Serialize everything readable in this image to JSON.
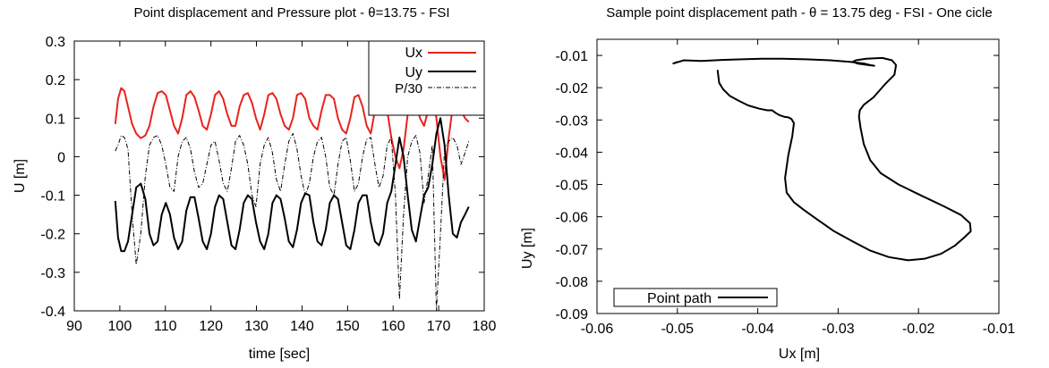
{
  "chart_data": [
    {
      "type": "line",
      "title": "Point displacement and Pressure plot - θ=13.75 - FSI",
      "xlabel": "time [sec]",
      "ylabel": "U [m]",
      "xlim": [
        90,
        180
      ],
      "ylim": [
        -0.4,
        0.3
      ],
      "xticks": [
        90,
        100,
        110,
        120,
        130,
        140,
        150,
        160,
        170,
        180
      ],
      "yticks": [
        -0.4,
        -0.3,
        -0.2,
        -0.1,
        0,
        0.1,
        0.2,
        0.3
      ],
      "xtick_labels": [
        "90",
        "100",
        "110",
        "120",
        "130",
        "140",
        "150",
        "160",
        "170",
        "180"
      ],
      "ytick_labels": [
        "-0.4",
        "-0.3",
        "-0.2",
        "-0.1",
        "0",
        "0.1",
        "0.2",
        "0.3"
      ],
      "grid": false,
      "legend_position": "top-right",
      "series": [
        {
          "name": "Ux",
          "color": "#e8231e",
          "style": "solid",
          "x": [
            99,
            99.6,
            100.3,
            101,
            101.8,
            102.7,
            103.6,
            104.6,
            105.6,
            106.5,
            107.4,
            108.3,
            109.2,
            110.1,
            111,
            111.9,
            112.8,
            113.7,
            114.6,
            115.5,
            116.4,
            117.3,
            118.2,
            119.1,
            120,
            120.9,
            121.8,
            122.7,
            123.6,
            124.5,
            125.4,
            126.3,
            127.2,
            128.1,
            129,
            129.9,
            130.8,
            131.7,
            132.6,
            133.5,
            134.4,
            135.3,
            136.2,
            137.1,
            138,
            138.9,
            139.8,
            140.7,
            141.6,
            142.5,
            143.4,
            144.3,
            145.2,
            146.1,
            147,
            147.9,
            148.8,
            149.7,
            150.6,
            151.5,
            152.4,
            153.3,
            154.2,
            155.1,
            156,
            156.9,
            157.8,
            158.7,
            159.6,
            160.5,
            161.4,
            162.3,
            163.2,
            164.1,
            165,
            165.9,
            166.8,
            167.7,
            168.6,
            169.5,
            170.4,
            171.3,
            172.2,
            173.1,
            174,
            174.9,
            175.8,
            176.6
          ],
          "y": [
            0.085,
            0.15,
            0.178,
            0.17,
            0.13,
            0.085,
            0.06,
            0.048,
            0.055,
            0.08,
            0.13,
            0.165,
            0.17,
            0.16,
            0.12,
            0.08,
            0.06,
            0.1,
            0.16,
            0.17,
            0.155,
            0.12,
            0.08,
            0.07,
            0.11,
            0.16,
            0.17,
            0.15,
            0.11,
            0.08,
            0.08,
            0.13,
            0.16,
            0.165,
            0.14,
            0.1,
            0.07,
            0.11,
            0.16,
            0.165,
            0.15,
            0.11,
            0.08,
            0.07,
            0.1,
            0.16,
            0.165,
            0.15,
            0.1,
            0.08,
            0.07,
            0.12,
            0.16,
            0.16,
            0.15,
            0.1,
            0.07,
            0.06,
            0.1,
            0.155,
            0.16,
            0.13,
            0.08,
            0.06,
            0.12,
            0.165,
            0.165,
            0.12,
            0.05,
            0.0,
            -0.03,
            0.02,
            0.11,
            0.16,
            0.145,
            0.1,
            0.08,
            0.12,
            0.16,
            0.1,
            0.0,
            -0.06,
            0.05,
            0.13,
            0.15,
            0.12,
            0.1,
            0.09
          ]
        },
        {
          "name": "Uy",
          "color": "#000000",
          "style": "solid",
          "x": [
            99,
            99.6,
            100.3,
            101,
            101.8,
            102.7,
            103.6,
            104.6,
            105.6,
            106.5,
            107.4,
            108.3,
            109.2,
            110.1,
            111,
            111.9,
            112.8,
            113.7,
            114.6,
            115.5,
            116.4,
            117.3,
            118.2,
            119.1,
            120,
            120.9,
            121.8,
            122.7,
            123.6,
            124.5,
            125.4,
            126.3,
            127.2,
            128.1,
            129,
            129.9,
            130.8,
            131.7,
            132.6,
            133.5,
            134.4,
            135.3,
            136.2,
            137.1,
            138,
            138.9,
            139.8,
            140.7,
            141.6,
            142.5,
            143.4,
            144.3,
            145.2,
            146.1,
            147,
            147.9,
            148.8,
            149.7,
            150.6,
            151.5,
            152.4,
            153.3,
            154.2,
            155.1,
            156,
            156.9,
            157.8,
            158.7,
            159.6,
            160.5,
            161.4,
            162.3,
            163.2,
            164.1,
            165,
            165.9,
            166.8,
            167.7,
            168.6,
            169.5,
            170.4,
            171.3,
            172.2,
            173.1,
            174,
            174.9,
            175.8,
            176.6
          ],
          "y": [
            -0.115,
            -0.21,
            -0.245,
            -0.245,
            -0.22,
            -0.15,
            -0.08,
            -0.07,
            -0.11,
            -0.2,
            -0.23,
            -0.22,
            -0.15,
            -0.12,
            -0.15,
            -0.21,
            -0.24,
            -0.22,
            -0.14,
            -0.105,
            -0.105,
            -0.16,
            -0.22,
            -0.24,
            -0.2,
            -0.13,
            -0.1,
            -0.11,
            -0.17,
            -0.23,
            -0.24,
            -0.19,
            -0.12,
            -0.1,
            -0.11,
            -0.17,
            -0.22,
            -0.24,
            -0.2,
            -0.12,
            -0.1,
            -0.11,
            -0.16,
            -0.22,
            -0.235,
            -0.19,
            -0.12,
            -0.095,
            -0.1,
            -0.17,
            -0.22,
            -0.23,
            -0.19,
            -0.12,
            -0.1,
            -0.11,
            -0.17,
            -0.23,
            -0.24,
            -0.19,
            -0.12,
            -0.1,
            -0.1,
            -0.17,
            -0.22,
            -0.23,
            -0.2,
            -0.12,
            -0.09,
            -0.02,
            0.05,
            0.0,
            -0.1,
            -0.19,
            -0.22,
            -0.16,
            -0.1,
            -0.08,
            -0.02,
            0.06,
            0.1,
            0.03,
            -0.1,
            -0.2,
            -0.21,
            -0.17,
            -0.15,
            -0.13
          ]
        },
        {
          "name": "P/30",
          "color": "#000000",
          "style": "dashdot",
          "x": [
            99,
            99.6,
            100.3,
            101,
            101.8,
            102.7,
            103.6,
            104.6,
            105.6,
            106.5,
            107.4,
            108.3,
            109.2,
            110.1,
            111,
            111.9,
            112.8,
            113.7,
            114.6,
            115.5,
            116.4,
            117.3,
            118.2,
            119.1,
            120,
            120.9,
            121.8,
            122.7,
            123.6,
            124.5,
            125.4,
            126.3,
            127.2,
            128.1,
            129,
            129.9,
            130.8,
            131.7,
            132.6,
            133.5,
            134.4,
            135.3,
            136.2,
            137.1,
            138,
            138.9,
            139.8,
            140.7,
            141.6,
            142.5,
            143.4,
            144.3,
            145.2,
            146.1,
            147,
            147.9,
            148.8,
            149.7,
            150.6,
            151.5,
            152.4,
            153.3,
            154.2,
            155.1,
            156,
            156.9,
            157.8,
            158.7,
            159.6,
            160.5,
            161.4,
            162.3,
            163.2,
            164.1,
            165,
            165.9,
            166.8,
            167.7,
            168.6,
            169.5,
            170.4,
            171.3,
            172.2,
            173.1,
            174,
            174.9,
            175.8,
            176.6
          ],
          "y": [
            0.015,
            0.03,
            0.055,
            0.05,
            0.02,
            -0.15,
            -0.28,
            -0.2,
            -0.05,
            0.03,
            0.05,
            0.055,
            0.03,
            -0.02,
            -0.08,
            -0.09,
            0.0,
            0.04,
            0.05,
            0.02,
            -0.04,
            -0.08,
            -0.07,
            -0.02,
            0.03,
            0.04,
            -0.01,
            -0.07,
            -0.09,
            -0.03,
            0.04,
            0.055,
            0.03,
            -0.02,
            -0.1,
            -0.13,
            -0.02,
            0.03,
            0.05,
            0.01,
            -0.06,
            -0.09,
            -0.02,
            0.04,
            0.06,
            0.02,
            -0.05,
            -0.1,
            -0.07,
            0.0,
            0.04,
            0.05,
            0.0,
            -0.08,
            -0.1,
            -0.02,
            0.04,
            0.05,
            -0.01,
            -0.09,
            -0.07,
            0.0,
            0.045,
            0.05,
            -0.02,
            -0.08,
            -0.05,
            0.03,
            0.05,
            -0.1,
            -0.37,
            -0.15,
            0.0,
            0.04,
            0.055,
            0.01,
            -0.12,
            -0.05,
            0.03,
            -0.4,
            -0.2,
            0.02,
            0.04,
            0.05,
            0.03,
            -0.02,
            0.01,
            0.04
          ]
        }
      ]
    },
    {
      "type": "line",
      "title": "Sample point displacement path - θ = 13.75 deg - FSI - One cicle",
      "xlabel": "Ux [m]",
      "ylabel": "Uy [m]",
      "xlim": [
        -0.06,
        -0.01
      ],
      "ylim": [
        -0.09,
        -0.005
      ],
      "xticks": [
        -0.06,
        -0.05,
        -0.04,
        -0.03,
        -0.02,
        -0.01
      ],
      "yticks": [
        -0.09,
        -0.08,
        -0.07,
        -0.06,
        -0.05,
        -0.04,
        -0.03,
        -0.02,
        -0.01
      ],
      "xtick_labels": [
        "-0.06",
        "-0.05",
        "-0.04",
        "-0.03",
        "-0.02",
        "-0.01"
      ],
      "ytick_labels": [
        "-0.09",
        "-0.08",
        "-0.07",
        "-0.06",
        "-0.05",
        "-0.04",
        "-0.03",
        "-0.02",
        "-0.01"
      ],
      "grid": false,
      "legend_position": "bottom-left",
      "series": [
        {
          "name": "Point path",
          "color": "#000000",
          "style": "solid",
          "x": [
            -0.045,
            -0.0448,
            -0.0443,
            -0.0435,
            -0.0424,
            -0.0412,
            -0.0398,
            -0.0388,
            -0.0382,
            -0.0378,
            -0.0373,
            -0.0367,
            -0.0362,
            -0.0358,
            -0.0355,
            -0.0357,
            -0.0362,
            -0.0366,
            -0.0364,
            -0.0355,
            -0.0342,
            -0.0325,
            -0.0305,
            -0.0283,
            -0.026,
            -0.0237,
            -0.0213,
            -0.0192,
            -0.0172,
            -0.0155,
            -0.0142,
            -0.0135,
            -0.0136,
            -0.0147,
            -0.0168,
            -0.0196,
            -0.0225,
            -0.0247,
            -0.026,
            -0.0268,
            -0.0272,
            -0.0274,
            -0.0273,
            -0.0268,
            -0.0256,
            -0.0242,
            -0.023,
            -0.0228,
            -0.0233,
            -0.0245,
            -0.0265,
            -0.0278,
            -0.0282,
            -0.0276,
            -0.0262,
            -0.0255,
            -0.026,
            -0.0268,
            -0.0285,
            -0.031,
            -0.034,
            -0.037,
            -0.0395,
            -0.042,
            -0.0445,
            -0.047,
            -0.0492,
            -0.0505,
            -0.05
          ],
          "y": [
            -0.0145,
            -0.0185,
            -0.0205,
            -0.0225,
            -0.024,
            -0.0255,
            -0.0265,
            -0.027,
            -0.027,
            -0.0278,
            -0.0285,
            -0.029,
            -0.0292,
            -0.0297,
            -0.031,
            -0.035,
            -0.041,
            -0.048,
            -0.0525,
            -0.0555,
            -0.058,
            -0.061,
            -0.0645,
            -0.0675,
            -0.0705,
            -0.0725,
            -0.0735,
            -0.073,
            -0.0715,
            -0.069,
            -0.0662,
            -0.0645,
            -0.062,
            -0.0595,
            -0.0568,
            -0.0535,
            -0.05,
            -0.0465,
            -0.0425,
            -0.0375,
            -0.0325,
            -0.029,
            -0.027,
            -0.0253,
            -0.023,
            -0.019,
            -0.016,
            -0.013,
            -0.0115,
            -0.0108,
            -0.011,
            -0.0115,
            -0.012,
            -0.0125,
            -0.013,
            -0.0132,
            -0.013,
            -0.0125,
            -0.012,
            -0.0115,
            -0.0112,
            -0.011,
            -0.011,
            -0.0112,
            -0.0114,
            -0.0117,
            -0.0115,
            -0.0125,
            -0.012
          ]
        }
      ]
    }
  ]
}
